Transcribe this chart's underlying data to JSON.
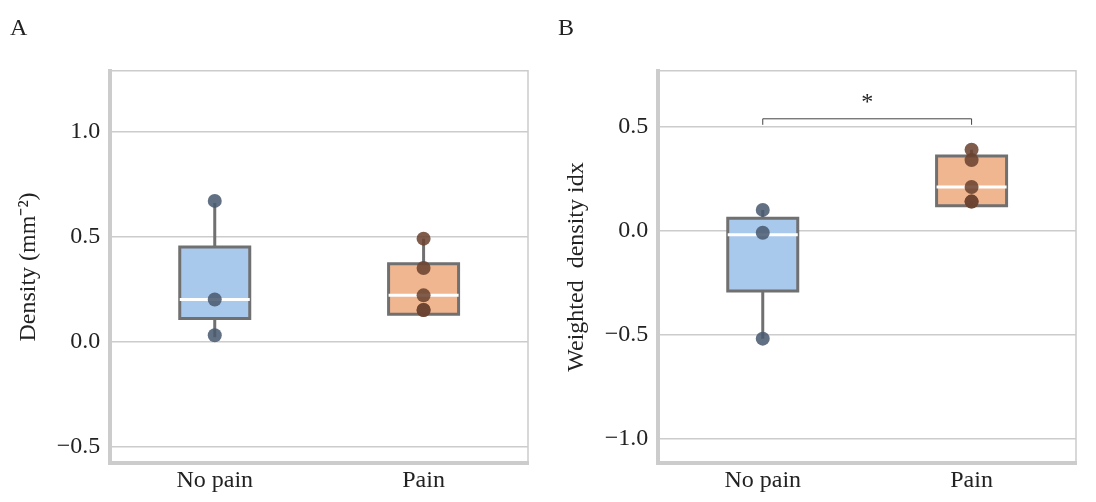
{
  "chart_data": [
    {
      "type": "box",
      "title": "A",
      "ylabel": "Density (mm⁻²)",
      "categories": [
        "No pain",
        "Pain"
      ],
      "colors": [
        "#a9c9ec",
        "#f0b690"
      ],
      "boxes": [
        {
          "low": 0.02,
          "q1": 0.11,
          "median": 0.2,
          "q3": 0.45,
          "high": 0.66
        },
        {
          "low": 0.13,
          "q1": 0.13,
          "median": 0.22,
          "q3": 0.37,
          "high": 0.49
        }
      ],
      "series": [
        {
          "type": "scatter",
          "x": [
            "No pain",
            "No pain",
            "No pain"
          ],
          "values": [
            0.67,
            0.2,
            0.03
          ],
          "color": "#4a5a70"
        },
        {
          "type": "scatter",
          "x": [
            "Pain",
            "Pain",
            "Pain",
            "Pain",
            "Pain"
          ],
          "values": [
            0.49,
            0.35,
            0.22,
            0.15,
            0.15
          ],
          "color": "#6b4330"
        }
      ],
      "ylim": [
        -0.58,
        1.29
      ],
      "yticks": [
        {
          "value": -0.5,
          "label": "−0.5"
        },
        {
          "value": 0,
          "label": "0.0"
        },
        0.5,
        {
          "value": 1,
          "label": "1.0"
        }
      ],
      "grid": "y",
      "marker": "circle"
    },
    {
      "type": "box",
      "title": "B",
      "ylabel": "Weighted  density idx",
      "categories": [
        "No pain",
        "Pain"
      ],
      "colors": [
        "#a9c9ec",
        "#f0b690"
      ],
      "boxes": [
        {
          "low": -0.52,
          "q1": -0.29,
          "median": -0.02,
          "q3": 0.06,
          "high": 0.1
        },
        {
          "low": 0.14,
          "q1": 0.12,
          "median": 0.21,
          "q3": 0.36,
          "high": 0.39
        }
      ],
      "series": [
        {
          "type": "scatter",
          "x": [
            "No pain",
            "No pain",
            "No pain"
          ],
          "values": [
            0.1,
            -0.01,
            -0.52
          ],
          "color": "#4a5a70"
        },
        {
          "type": "scatter",
          "x": [
            "Pain",
            "Pain",
            "Pain",
            "Pain",
            "Pain"
          ],
          "values": [
            0.39,
            0.34,
            0.21,
            0.14,
            0.14
          ],
          "color": "#6b4330"
        }
      ],
      "ylim": [
        -1.12,
        0.77
      ],
      "yticks": [
        {
          "value": -1,
          "label": "−1.0"
        },
        {
          "value": -0.5,
          "label": "−0.5"
        },
        {
          "value": 0,
          "label": "0.0"
        },
        0.5
      ],
      "grid": "y",
      "marker": "circle",
      "annotations": [
        "*"
      ]
    }
  ]
}
